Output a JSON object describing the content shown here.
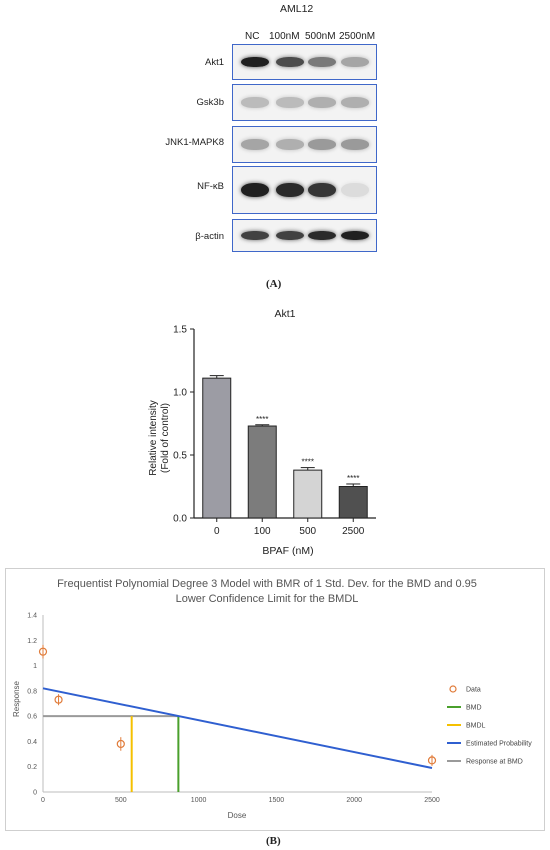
{
  "blot": {
    "title": "AML12",
    "lanes": [
      "NC",
      "100nM",
      "500nM",
      "2500nM"
    ],
    "rows": [
      {
        "label": "Akt1",
        "intensity": [
          0.95,
          0.75,
          0.55,
          0.35
        ]
      },
      {
        "label": "Gsk3b",
        "intensity": [
          0.25,
          0.25,
          0.3,
          0.3
        ]
      },
      {
        "label": "JNK1-MAPK8",
        "intensity": [
          0.35,
          0.3,
          0.4,
          0.4
        ]
      },
      {
        "label": "NF-κB",
        "intensity": [
          0.95,
          0.9,
          0.85,
          0.1
        ]
      },
      {
        "label": "β-actin",
        "intensity": [
          0.8,
          0.8,
          0.9,
          0.95
        ]
      }
    ],
    "panel_label": "(A)"
  },
  "chart_data": [
    {
      "type": "bar",
      "title": "Akt1",
      "xlabel": "BPAF (nM)",
      "ylabel": "Relative intensity (Fold of control)",
      "ylabel_lines": [
        "Relative intensity",
        "(Fold of control)"
      ],
      "categories": [
        "0",
        "100",
        "500",
        "2500"
      ],
      "values": [
        1.11,
        0.73,
        0.38,
        0.25
      ],
      "errors": [
        0.02,
        0.01,
        0.02,
        0.02
      ],
      "annotations": [
        "",
        "****",
        "****",
        "****"
      ],
      "ylim": [
        0,
        1.5
      ],
      "yticks": [
        "0.0",
        "0.5",
        "1.0",
        "1.5"
      ],
      "colors": [
        "#9c9ca4",
        "#7c7c7c",
        "#d4d4d4",
        "#505050"
      ]
    },
    {
      "type": "line",
      "title_lines": [
        "Frequentist Polynomial Degree 3 Model with BMR of 1 Std. Dev. for the BMD and 0.95",
        "Lower Confidence Limit for the BMDL"
      ],
      "xlabel": "Dose",
      "ylabel": "Response",
      "xlim": [
        0,
        2500
      ],
      "ylim": [
        0,
        1.4
      ],
      "xticks": [
        "0",
        "500",
        "1000",
        "1500",
        "2000",
        "2500"
      ],
      "yticks": [
        "0",
        "0.2",
        "0.4",
        "0.6",
        "0.8",
        "1",
        "1.2",
        "1.4"
      ],
      "data_points": [
        {
          "x": 0,
          "y": 1.11,
          "err": 0.03
        },
        {
          "x": 100,
          "y": 0.73,
          "err": 0.02
        },
        {
          "x": 500,
          "y": 0.38,
          "err": 0.03
        },
        {
          "x": 2500,
          "y": 0.25,
          "err": 0.02
        }
      ],
      "estimated_probability": {
        "x": [
          0,
          2500
        ],
        "y": [
          0.82,
          0.19
        ]
      },
      "bmd": 870,
      "bmdl": 570,
      "response_at_bmd": 0.6,
      "legend": [
        "Data",
        "BMD",
        "BMDL",
        "Estimated Probability",
        "Response at BMD"
      ],
      "legend_colors": [
        "#e07b39",
        "#4aa02c",
        "#f5c000",
        "#2f5fd0",
        "#9a9a9a"
      ],
      "panel_label": "(B)"
    }
  ]
}
